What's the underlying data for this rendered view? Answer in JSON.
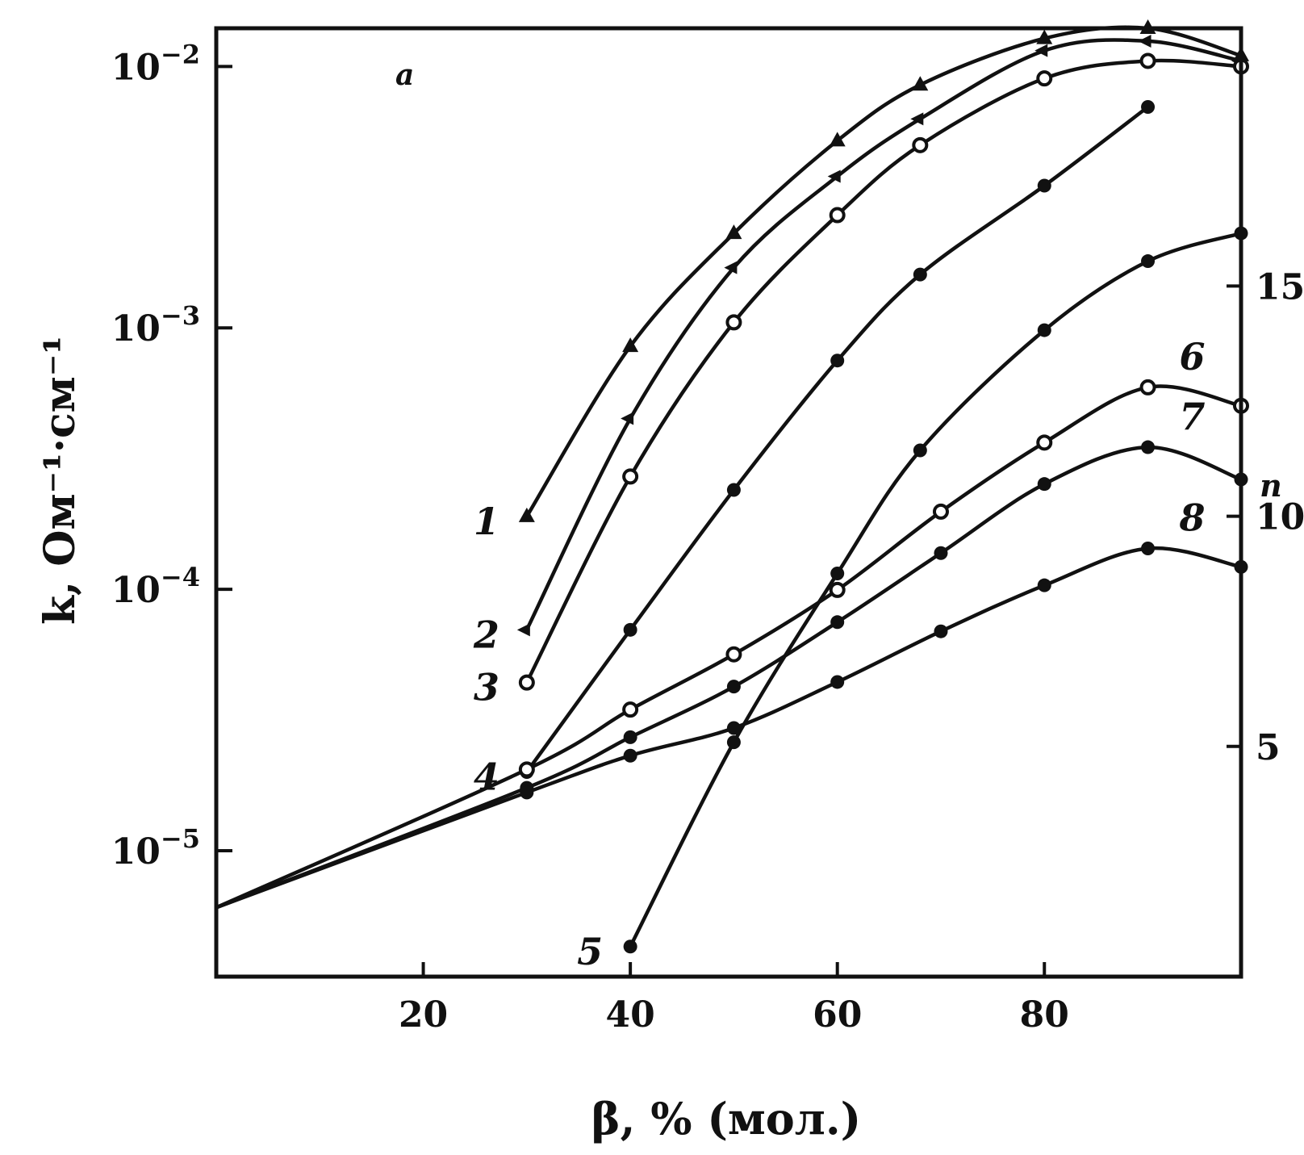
{
  "chart_data": {
    "type": "line",
    "panel_label": "a",
    "xlabel": "β, % (мол.)",
    "ylabel_left": "k, Ом⁻¹·см⁻¹",
    "ylabel_right": "n",
    "x_ticks": [
      "20",
      "40",
      "60",
      "80"
    ],
    "y_left_ticks": [
      {
        "value": 1e-05,
        "base": "10",
        "exp": "−5"
      },
      {
        "value": 0.0001,
        "base": "10",
        "exp": "−4"
      },
      {
        "value": 0.001,
        "base": "10",
        "exp": "−3"
      },
      {
        "value": 0.01,
        "base": "10",
        "exp": "−2"
      }
    ],
    "y_right_ticks": [
      "5",
      "10",
      "15"
    ],
    "xlim": [
      0,
      99
    ],
    "ylim_left_log": [
      3.3e-06,
      0.014
    ],
    "ylim_right": [
      0,
      20.6
    ],
    "series": [
      {
        "name": "1",
        "axis": "left",
        "marker": "triangle",
        "x": [
          30,
          40,
          50,
          60,
          68,
          80,
          90,
          99
        ],
        "y": [
          0.00019,
          0.00085,
          0.0023,
          0.0052,
          0.0085,
          0.0128,
          0.014,
          0.011
        ]
      },
      {
        "name": "2",
        "axis": "left",
        "marker": "arrow",
        "x": [
          30,
          40,
          50,
          60,
          68,
          80,
          90,
          99
        ],
        "y": [
          7e-05,
          0.00045,
          0.0017,
          0.0038,
          0.0063,
          0.0115,
          0.0125,
          0.0105
        ]
      },
      {
        "name": "3",
        "axis": "left",
        "marker": "circle-open",
        "x": [
          30,
          40,
          50,
          60,
          68,
          80,
          90,
          99
        ],
        "y": [
          4.4e-05,
          0.00027,
          0.00105,
          0.0027,
          0.005,
          0.009,
          0.0105,
          0.01
        ]
      },
      {
        "name": "4",
        "axis": "left",
        "marker": "circle-filled",
        "x": [
          30,
          40,
          50,
          60,
          68,
          80,
          90
        ],
        "y": [
          2e-05,
          7e-05,
          0.00024,
          0.00075,
          0.0016,
          0.0035,
          0.007
        ]
      },
      {
        "name": "5",
        "axis": "left",
        "marker": "circle-filled",
        "x": [
          40,
          50,
          60,
          68,
          80,
          90,
          99
        ],
        "y": [
          4.3e-06,
          2.6e-05,
          0.000115,
          0.00034,
          0.00098,
          0.0018,
          0.0023
        ]
      },
      {
        "name": "6",
        "axis": "right",
        "marker": "circle-open",
        "x": [
          0,
          30,
          40,
          50,
          60,
          70,
          80,
          90,
          99
        ],
        "y": [
          1.5,
          4.5,
          5.8,
          7.0,
          8.4,
          10.1,
          11.6,
          12.8,
          12.4
        ]
      },
      {
        "name": "7",
        "axis": "right",
        "marker": "circle-filled",
        "x": [
          0,
          30,
          40,
          50,
          60,
          70,
          80,
          90,
          99
        ],
        "y": [
          1.5,
          4.1,
          5.2,
          6.3,
          7.7,
          9.2,
          10.7,
          11.5,
          10.8
        ]
      },
      {
        "name": "8",
        "axis": "right",
        "marker": "circle-filled",
        "x": [
          0,
          30,
          40,
          50,
          60,
          70,
          80,
          90,
          99
        ],
        "y": [
          1.5,
          4.0,
          4.8,
          5.4,
          6.4,
          7.5,
          8.5,
          9.3,
          8.9
        ]
      }
    ]
  }
}
